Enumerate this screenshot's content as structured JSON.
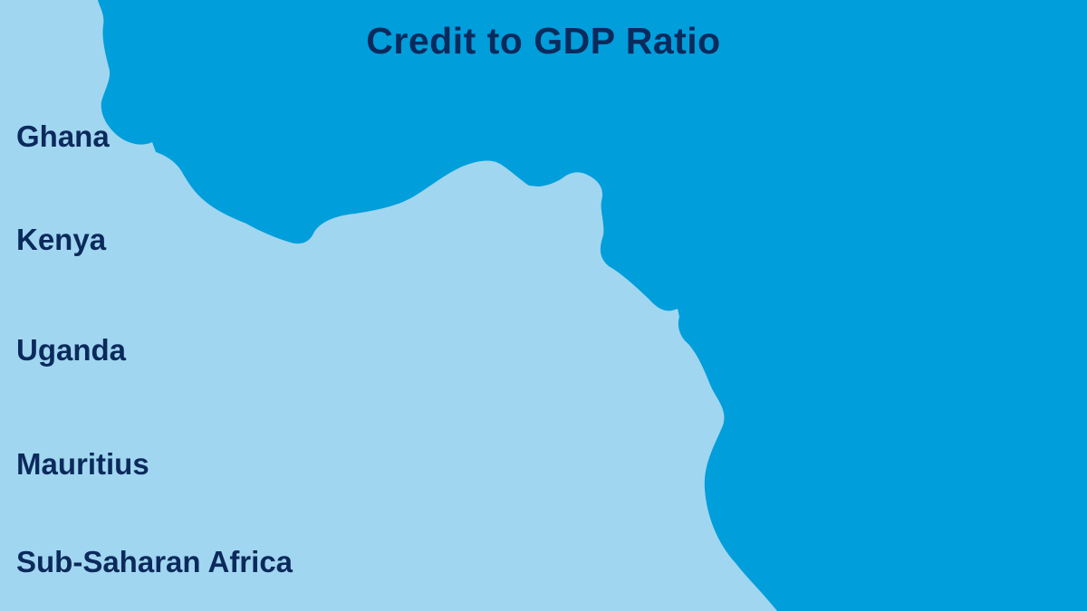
{
  "title": "Credit to GDP Ratio",
  "countries": [
    "Ghana",
    "Kenya",
    "Uganda",
    "Mauritius",
    "Sub-Saharan Africa"
  ],
  "colors": {
    "land": "#a1d6f0",
    "ocean": "#009edb",
    "text": "#0b2a5c"
  }
}
